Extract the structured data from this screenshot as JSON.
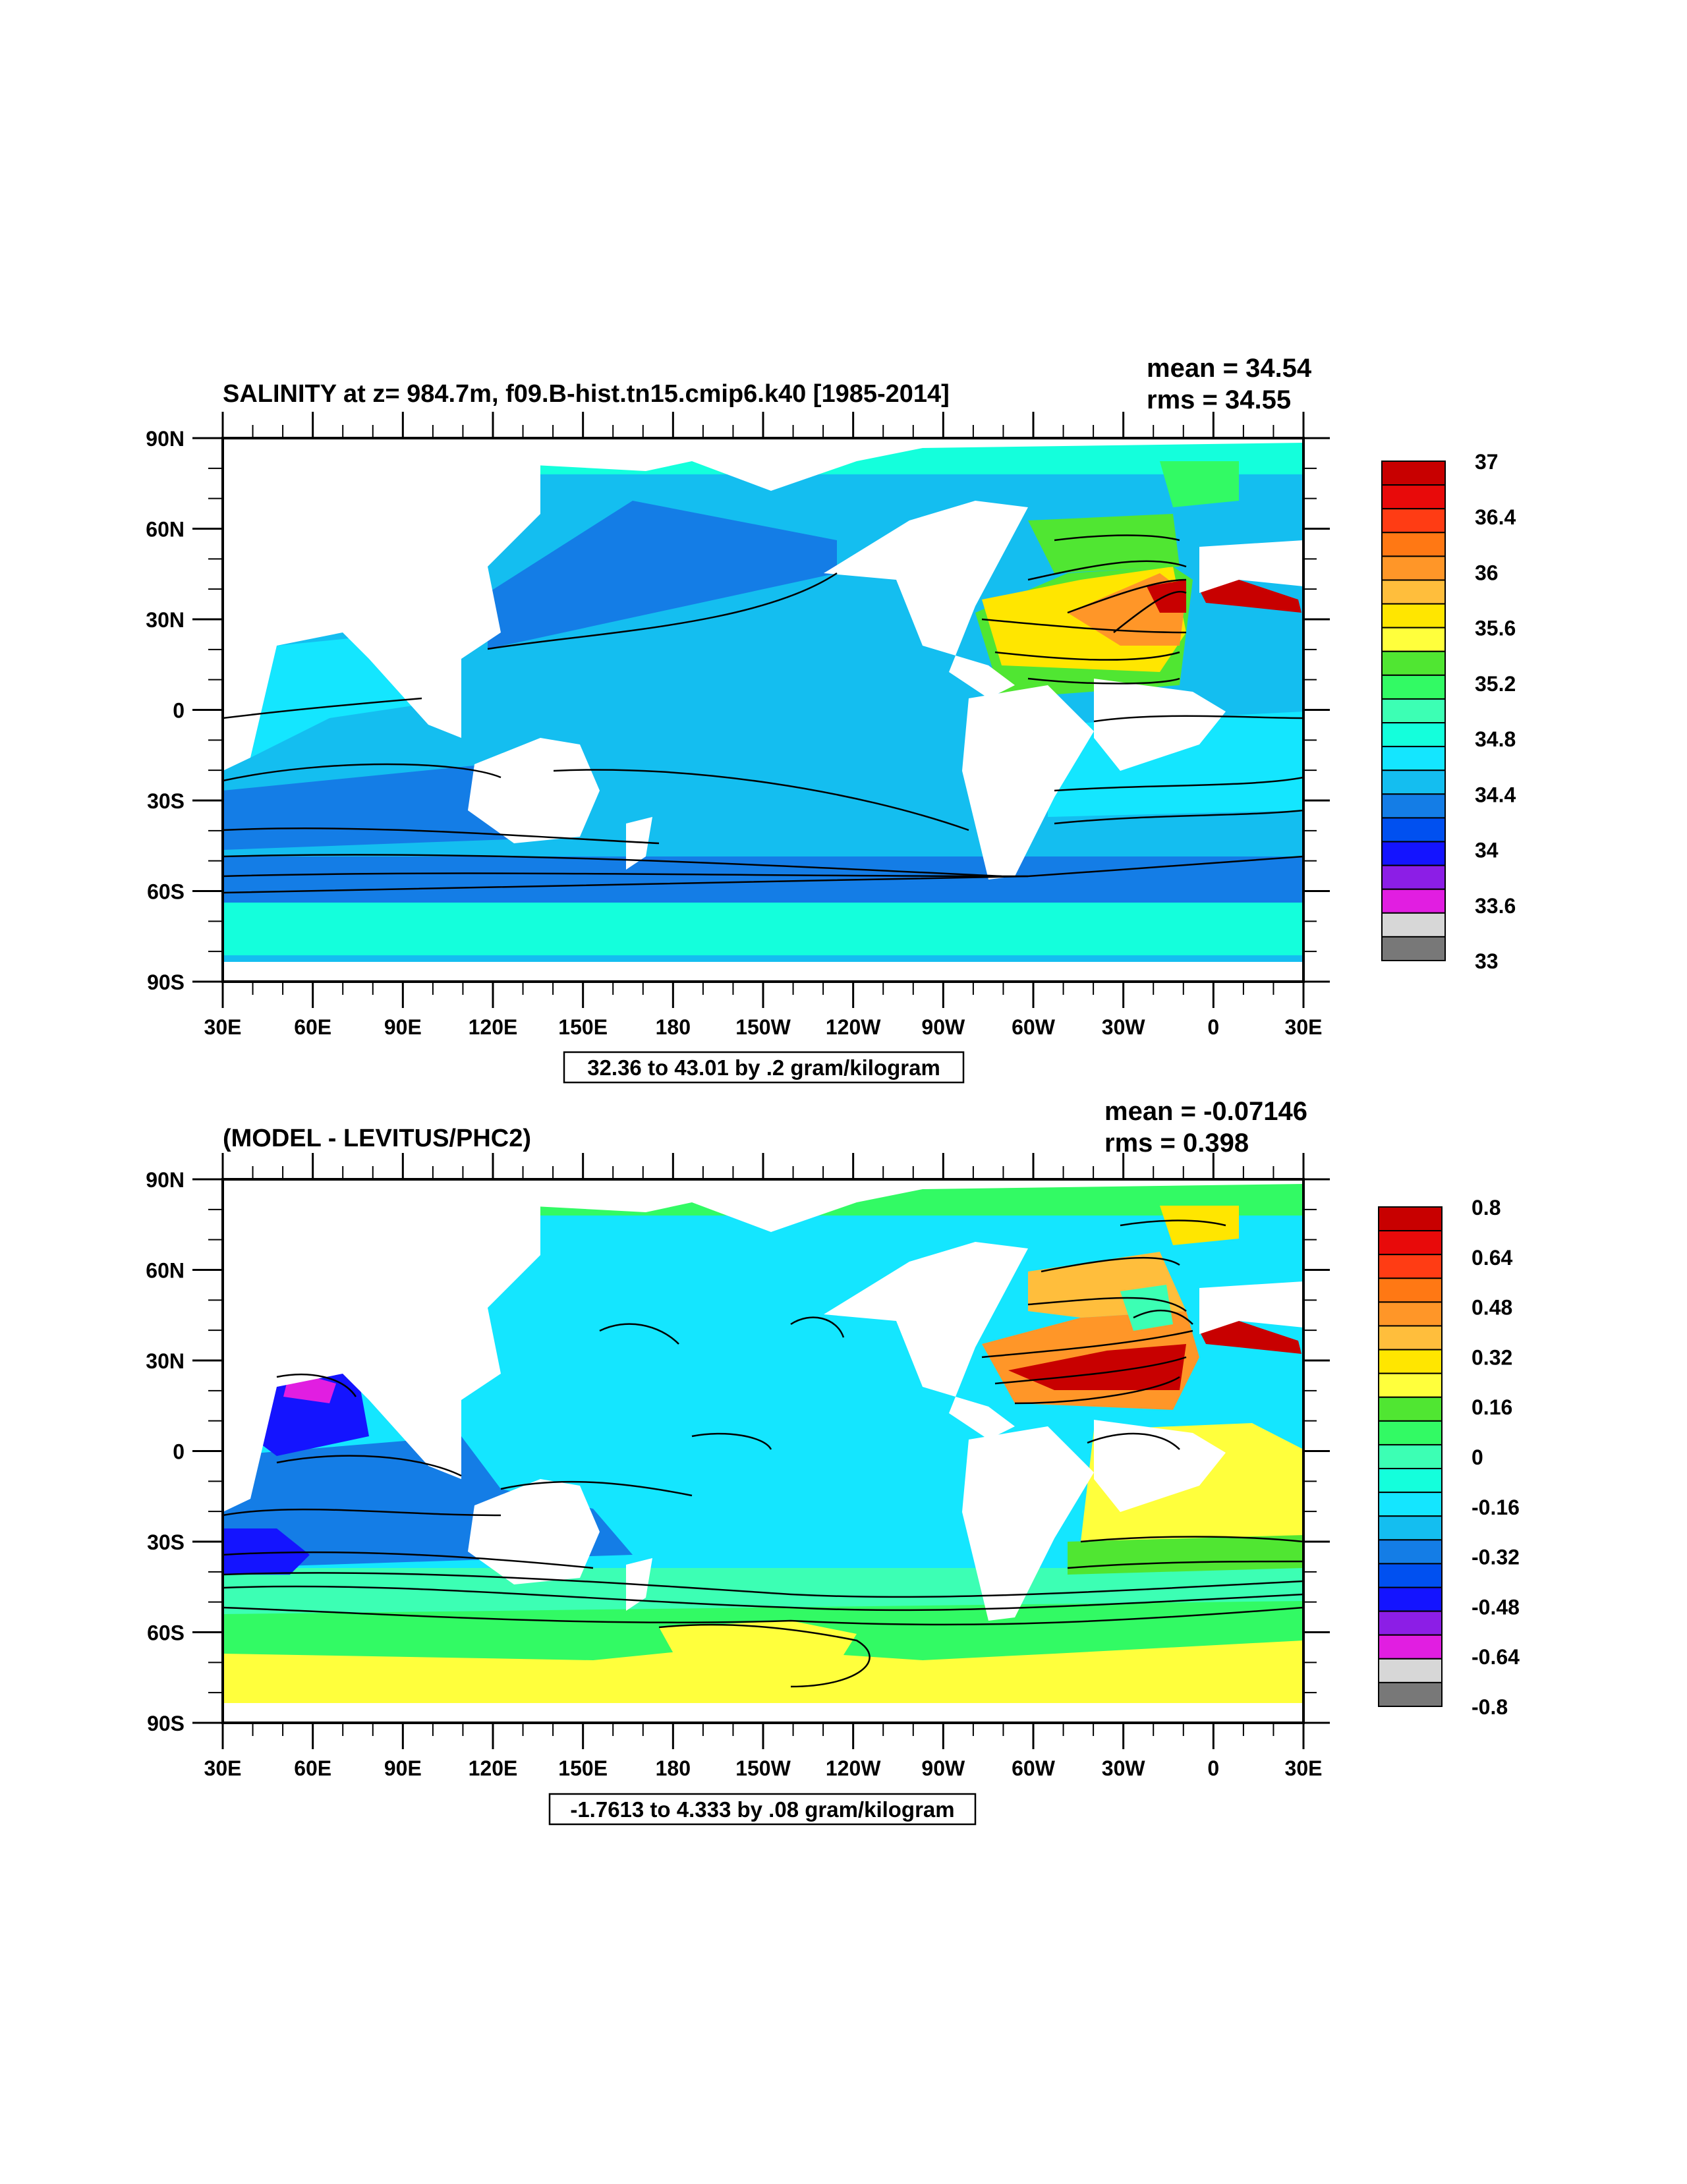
{
  "top": {
    "title": "SALINITY at z= 984.7m, f09.B-hist.tn15.cmip6.k40 [1985-2014]",
    "mean": "mean = 34.54",
    "rms": "rms = 34.55",
    "info": "32.36 to 43.01 by .2 gram/kilogram",
    "legend_labels": [
      "37",
      "36.4",
      "36",
      "35.6",
      "35.2",
      "34.8",
      "34.4",
      "34",
      "33.6",
      "33"
    ],
    "legend_colors": [
      "#c80000",
      "#e80a0a",
      "#ff3c14",
      "#ff7814",
      "#ff9628",
      "#ffbe3c",
      "#ffe600",
      "#ffff3c",
      "#50e632",
      "#32fa64",
      "#3cffb4",
      "#14ffdc",
      "#14e6ff",
      "#14bef0",
      "#147de6",
      "#0050f0",
      "#1414ff",
      "#8c1ee6",
      "#e11ee1",
      "#d7d7d7",
      "#787878"
    ]
  },
  "bottom": {
    "title": "(MODEL - LEVITUS/PHC2)",
    "mean": "mean = -0.07146",
    "rms": "rms = 0.398",
    "info": "-1.7613 to 4.333 by .08 gram/kilogram",
    "legend_labels": [
      "0.8",
      "0.64",
      "0.48",
      "0.32",
      "0.16",
      "0",
      "-0.16",
      "-0.32",
      "-0.48",
      "-0.64",
      "-0.8"
    ],
    "legend_colors": [
      "#c80000",
      "#e80a0a",
      "#ff3c14",
      "#ff7814",
      "#ff9628",
      "#ffbe3c",
      "#ffe600",
      "#ffff3c",
      "#50e632",
      "#32fa64",
      "#3cffb4",
      "#14ffdc",
      "#14e6ff",
      "#14bef0",
      "#147de6",
      "#0050f0",
      "#1414ff",
      "#8c1ee6",
      "#e11ee1",
      "#d7d7d7",
      "#787878"
    ]
  },
  "axes": {
    "lat_ticks": [
      "90N",
      "60N",
      "30N",
      "0",
      "30S",
      "60S",
      "90S"
    ],
    "lon_ticks": [
      "30E",
      "60E",
      "90E",
      "120E",
      "150E",
      "180",
      "150W",
      "120W",
      "90W",
      "60W",
      "30W",
      "0",
      "30E"
    ]
  }
}
